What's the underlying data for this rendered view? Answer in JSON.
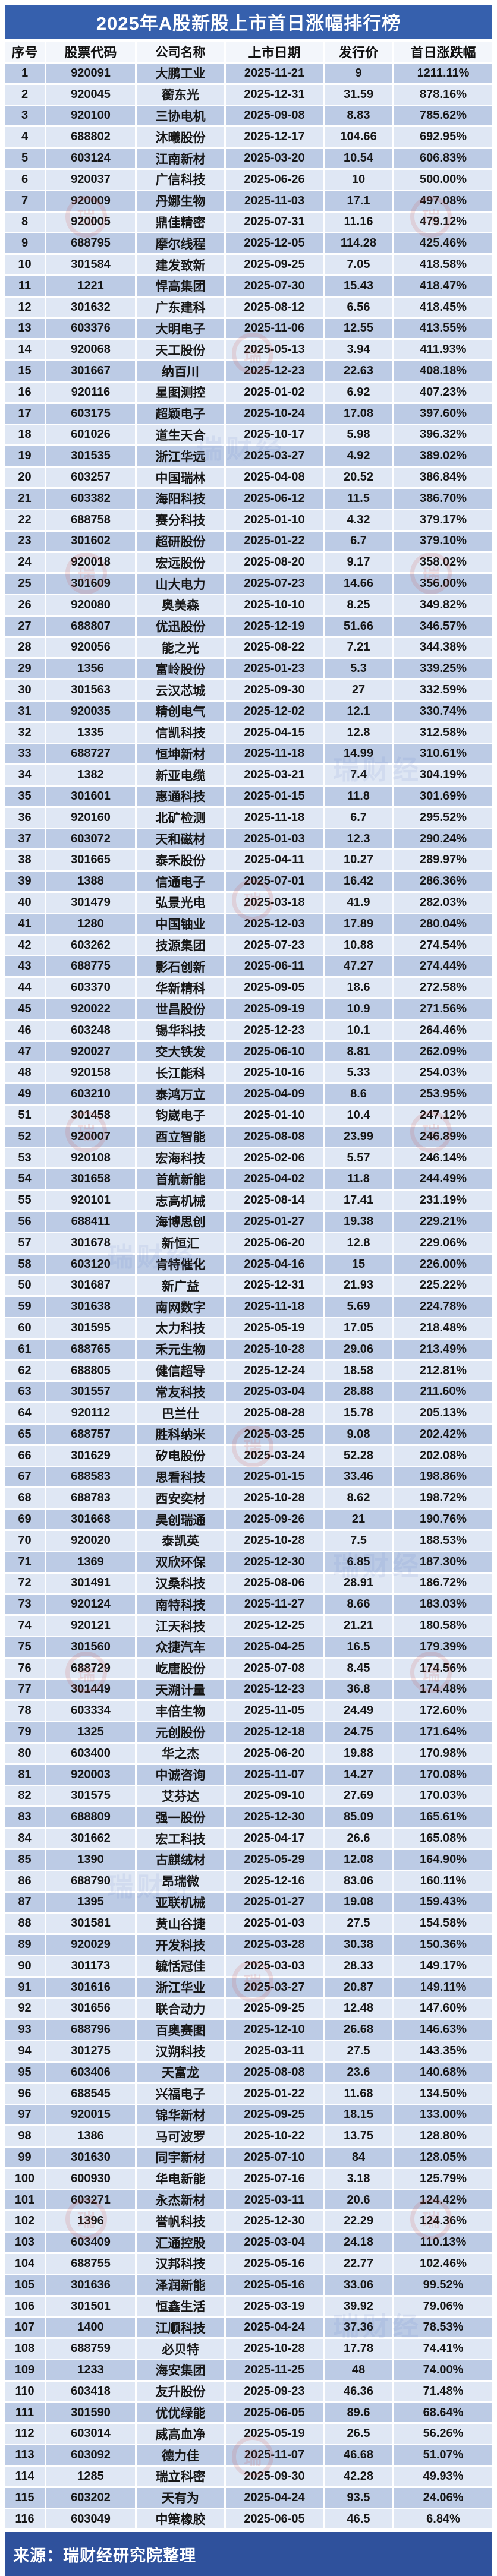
{
  "title": "2025年A股新股上市首日涨幅排行榜",
  "footer": {
    "source": "来源：瑞财经研究院整理"
  },
  "watermark": {
    "brand": "瑞财经"
  },
  "colors": {
    "title_bar": "#3660AD",
    "footer_bar": "#2F519C",
    "row_dark": "#BCCBE5",
    "row_light": "#DFE7F4",
    "header_bg": "#F3F6FB",
    "watermark_red": "#D24A43"
  },
  "table": {
    "columns": [
      "序号",
      "股票代码",
      "公司名称",
      "上市日期",
      "发行价",
      "首日涨跌幅"
    ],
    "rows": [
      [
        "1",
        "920091",
        "大鹏工业",
        "2025-11-21",
        "9",
        "1211.11%"
      ],
      [
        "2",
        "920045",
        "蘅东光",
        "2025-12-31",
        "31.59",
        "878.16%"
      ],
      [
        "3",
        "920100",
        "三协电机",
        "2025-09-08",
        "8.83",
        "785.62%"
      ],
      [
        "4",
        "688802",
        "沐曦股份",
        "2025-12-17",
        "104.66",
        "692.95%"
      ],
      [
        "5",
        "603124",
        "江南新材",
        "2025-03-20",
        "10.54",
        "606.83%"
      ],
      [
        "6",
        "920037",
        "广信科技",
        "2025-06-26",
        "10",
        "500.00%"
      ],
      [
        "7",
        "920009",
        "丹娜生物",
        "2025-11-03",
        "17.1",
        "497.08%"
      ],
      [
        "8",
        "920005",
        "鼎佳精密",
        "2025-07-31",
        "11.16",
        "479.12%"
      ],
      [
        "9",
        "688795",
        "摩尔线程",
        "2025-12-05",
        "114.28",
        "425.46%"
      ],
      [
        "10",
        "301584",
        "建发致新",
        "2025-09-25",
        "7.05",
        "418.58%"
      ],
      [
        "11",
        "1221",
        "悍高集团",
        "2025-07-30",
        "15.43",
        "418.47%"
      ],
      [
        "12",
        "301632",
        "广东建科",
        "2025-08-12",
        "6.56",
        "418.45%"
      ],
      [
        "13",
        "603376",
        "大明电子",
        "2025-11-06",
        "12.55",
        "413.55%"
      ],
      [
        "14",
        "920068",
        "天工股份",
        "2025-05-13",
        "3.94",
        "411.93%"
      ],
      [
        "15",
        "301667",
        "纳百川",
        "2025-12-23",
        "22.63",
        "408.18%"
      ],
      [
        "16",
        "920116",
        "星图测控",
        "2025-01-02",
        "6.92",
        "407.23%"
      ],
      [
        "17",
        "603175",
        "超颖电子",
        "2025-10-24",
        "17.08",
        "397.60%"
      ],
      [
        "18",
        "601026",
        "道生天合",
        "2025-10-17",
        "5.98",
        "396.32%"
      ],
      [
        "19",
        "301535",
        "浙江华远",
        "2025-03-27",
        "4.92",
        "389.02%"
      ],
      [
        "20",
        "603257",
        "中国瑞林",
        "2025-04-08",
        "20.52",
        "386.84%"
      ],
      [
        "21",
        "603382",
        "海阳科技",
        "2025-06-12",
        "11.5",
        "386.70%"
      ],
      [
        "22",
        "688758",
        "赛分科技",
        "2025-01-10",
        "4.32",
        "379.17%"
      ],
      [
        "23",
        "301602",
        "超研股份",
        "2025-01-22",
        "6.7",
        "379.10%"
      ],
      [
        "24",
        "920018",
        "宏远股份",
        "2025-08-20",
        "9.17",
        "358.02%"
      ],
      [
        "25",
        "301609",
        "山大电力",
        "2025-07-23",
        "14.66",
        "356.00%"
      ],
      [
        "26",
        "920080",
        "奥美森",
        "2025-10-10",
        "8.25",
        "349.82%"
      ],
      [
        "27",
        "688807",
        "优迅股份",
        "2025-12-19",
        "51.66",
        "346.57%"
      ],
      [
        "28",
        "920056",
        "能之光",
        "2025-08-22",
        "7.21",
        "344.38%"
      ],
      [
        "29",
        "1356",
        "富岭股份",
        "2025-01-23",
        "5.3",
        "339.25%"
      ],
      [
        "30",
        "301563",
        "云汉芯城",
        "2025-09-30",
        "27",
        "332.59%"
      ],
      [
        "31",
        "920035",
        "精创电气",
        "2025-12-02",
        "12.1",
        "330.74%"
      ],
      [
        "32",
        "1335",
        "信凯科技",
        "2025-04-15",
        "12.8",
        "312.58%"
      ],
      [
        "33",
        "688727",
        "恒坤新材",
        "2025-11-18",
        "14.99",
        "310.61%"
      ],
      [
        "34",
        "1382",
        "新亚电缆",
        "2025-03-21",
        "7.4",
        "304.19%"
      ],
      [
        "35",
        "301601",
        "惠通科技",
        "2025-01-15",
        "11.8",
        "301.69%"
      ],
      [
        "36",
        "920160",
        "北矿检测",
        "2025-11-18",
        "6.7",
        "295.52%"
      ],
      [
        "37",
        "603072",
        "天和磁材",
        "2025-01-03",
        "12.3",
        "290.24%"
      ],
      [
        "38",
        "301665",
        "泰禾股份",
        "2025-04-11",
        "10.27",
        "289.97%"
      ],
      [
        "39",
        "1388",
        "信通电子",
        "2025-07-01",
        "16.42",
        "286.36%"
      ],
      [
        "40",
        "301479",
        "弘景光电",
        "2025-03-18",
        "41.9",
        "282.03%"
      ],
      [
        "41",
        "1280",
        "中国铀业",
        "2025-12-03",
        "17.89",
        "280.04%"
      ],
      [
        "42",
        "603262",
        "技源集团",
        "2025-07-23",
        "10.88",
        "274.54%"
      ],
      [
        "43",
        "688775",
        "影石创新",
        "2025-06-11",
        "47.27",
        "274.44%"
      ],
      [
        "44",
        "603370",
        "华新精科",
        "2025-09-05",
        "18.6",
        "272.58%"
      ],
      [
        "45",
        "920022",
        "世昌股份",
        "2025-09-19",
        "10.9",
        "271.56%"
      ],
      [
        "46",
        "603248",
        "锡华科技",
        "2025-12-23",
        "10.1",
        "264.46%"
      ],
      [
        "47",
        "920027",
        "交大铁发",
        "2025-06-10",
        "8.81",
        "262.09%"
      ],
      [
        "48",
        "920158",
        "长江能科",
        "2025-10-16",
        "5.33",
        "254.03%"
      ],
      [
        "49",
        "603210",
        "泰鸿万立",
        "2025-04-09",
        "8.6",
        "253.95%"
      ],
      [
        "51",
        "301458",
        "钧崴电子",
        "2025-01-10",
        "10.4",
        "247.12%"
      ],
      [
        "52",
        "920007",
        "酉立智能",
        "2025-08-08",
        "23.99",
        "246.89%"
      ],
      [
        "53",
        "920108",
        "宏海科技",
        "2025-02-06",
        "5.57",
        "246.14%"
      ],
      [
        "54",
        "301658",
        "首航新能",
        "2025-04-02",
        "11.8",
        "244.49%"
      ],
      [
        "55",
        "920101",
        "志高机械",
        "2025-08-14",
        "17.41",
        "231.19%"
      ],
      [
        "56",
        "688411",
        "海博思创",
        "2025-01-27",
        "19.38",
        "229.21%"
      ],
      [
        "57",
        "301678",
        "新恒汇",
        "2025-06-20",
        "12.8",
        "229.06%"
      ],
      [
        "58",
        "603120",
        "肯特催化",
        "2025-04-16",
        "15",
        "226.00%"
      ],
      [
        "50",
        "301687",
        "新广益",
        "2025-12-31",
        "21.93",
        "225.22%"
      ],
      [
        "59",
        "301638",
        "南网数字",
        "2025-11-18",
        "5.69",
        "224.78%"
      ],
      [
        "60",
        "301595",
        "太力科技",
        "2025-05-19",
        "17.05",
        "218.48%"
      ],
      [
        "61",
        "688765",
        "禾元生物",
        "2025-10-28",
        "29.06",
        "213.49%"
      ],
      [
        "62",
        "688805",
        "健信超导",
        "2025-12-24",
        "18.58",
        "212.81%"
      ],
      [
        "63",
        "301557",
        "常友科技",
        "2025-03-04",
        "28.88",
        "211.60%"
      ],
      [
        "64",
        "920112",
        "巴兰仕",
        "2025-08-28",
        "15.78",
        "205.13%"
      ],
      [
        "65",
        "688757",
        "胜科纳米",
        "2025-03-25",
        "9.08",
        "202.42%"
      ],
      [
        "66",
        "301629",
        "矽电股份",
        "2025-03-24",
        "52.28",
        "202.08%"
      ],
      [
        "67",
        "688583",
        "思看科技",
        "2025-01-15",
        "33.46",
        "198.86%"
      ],
      [
        "68",
        "688783",
        "西安奕材",
        "2025-10-28",
        "8.62",
        "198.72%"
      ],
      [
        "69",
        "301668",
        "昊创瑞通",
        "2025-09-26",
        "21",
        "190.76%"
      ],
      [
        "70",
        "920020",
        "泰凯英",
        "2025-10-28",
        "7.5",
        "188.53%"
      ],
      [
        "71",
        "1369",
        "双欣环保",
        "2025-12-30",
        "6.85",
        "187.30%"
      ],
      [
        "72",
        "301491",
        "汉桑科技",
        "2025-08-06",
        "28.91",
        "186.72%"
      ],
      [
        "73",
        "920124",
        "南特科技",
        "2025-11-27",
        "8.66",
        "183.03%"
      ],
      [
        "74",
        "920121",
        "江天科技",
        "2025-12-25",
        "21.21",
        "180.58%"
      ],
      [
        "75",
        "301560",
        "众捷汽车",
        "2025-04-25",
        "16.5",
        "179.39%"
      ],
      [
        "76",
        "688729",
        "屹唐股份",
        "2025-07-08",
        "8.45",
        "174.56%"
      ],
      [
        "77",
        "301449",
        "天溯计量",
        "2025-12-23",
        "36.8",
        "174.48%"
      ],
      [
        "78",
        "603334",
        "丰倍生物",
        "2025-11-05",
        "24.49",
        "172.60%"
      ],
      [
        "79",
        "1325",
        "元创股份",
        "2025-12-18",
        "24.75",
        "171.64%"
      ],
      [
        "80",
        "603400",
        "华之杰",
        "2025-06-20",
        "19.88",
        "170.98%"
      ],
      [
        "81",
        "920003",
        "中诚咨询",
        "2025-11-07",
        "14.27",
        "170.08%"
      ],
      [
        "82",
        "301575",
        "艾芬达",
        "2025-09-10",
        "27.69",
        "170.03%"
      ],
      [
        "83",
        "688809",
        "强一股份",
        "2025-12-30",
        "85.09",
        "165.61%"
      ],
      [
        "84",
        "301662",
        "宏工科技",
        "2025-04-17",
        "26.6",
        "165.08%"
      ],
      [
        "85",
        "1390",
        "古麒绒材",
        "2025-05-29",
        "12.08",
        "164.90%"
      ],
      [
        "86",
        "688790",
        "昂瑞微",
        "2025-12-16",
        "83.06",
        "160.11%"
      ],
      [
        "87",
        "1395",
        "亚联机械",
        "2025-01-27",
        "19.08",
        "159.43%"
      ],
      [
        "88",
        "301581",
        "黄山谷捷",
        "2025-01-03",
        "27.5",
        "154.58%"
      ],
      [
        "89",
        "920029",
        "开发科技",
        "2025-03-28",
        "30.38",
        "150.36%"
      ],
      [
        "90",
        "301173",
        "毓恬冠佳",
        "2025-03-03",
        "28.33",
        "149.17%"
      ],
      [
        "91",
        "301616",
        "浙江华业",
        "2025-03-27",
        "20.87",
        "149.11%"
      ],
      [
        "92",
        "301656",
        "联合动力",
        "2025-09-25",
        "12.48",
        "147.60%"
      ],
      [
        "93",
        "688796",
        "百奥赛图",
        "2025-12-10",
        "26.68",
        "146.63%"
      ],
      [
        "94",
        "301275",
        "汉朔科技",
        "2025-03-11",
        "27.5",
        "143.35%"
      ],
      [
        "95",
        "603406",
        "天富龙",
        "2025-08-08",
        "23.6",
        "140.68%"
      ],
      [
        "96",
        "688545",
        "兴福电子",
        "2025-01-22",
        "11.68",
        "134.50%"
      ],
      [
        "97",
        "920015",
        "锦华新材",
        "2025-09-25",
        "18.15",
        "133.00%"
      ],
      [
        "98",
        "1386",
        "马可波罗",
        "2025-10-22",
        "13.75",
        "128.80%"
      ],
      [
        "99",
        "301630",
        "同宇新材",
        "2025-07-10",
        "84",
        "128.05%"
      ],
      [
        "100",
        "600930",
        "华电新能",
        "2025-07-16",
        "3.18",
        "125.79%"
      ],
      [
        "101",
        "603271",
        "永杰新材",
        "2025-03-11",
        "20.6",
        "124.42%"
      ],
      [
        "102",
        "1396",
        "誉帆科技",
        "2025-12-30",
        "22.29",
        "124.36%"
      ],
      [
        "103",
        "603409",
        "汇通控股",
        "2025-03-04",
        "24.18",
        "110.13%"
      ],
      [
        "104",
        "688755",
        "汉邦科技",
        "2025-05-16",
        "22.77",
        "102.46%"
      ],
      [
        "105",
        "301636",
        "泽润新能",
        "2025-05-16",
        "33.06",
        "99.52%"
      ],
      [
        "106",
        "301501",
        "恒鑫生活",
        "2025-03-19",
        "39.92",
        "79.06%"
      ],
      [
        "107",
        "1400",
        "江顺科技",
        "2025-04-24",
        "37.36",
        "78.53%"
      ],
      [
        "108",
        "688759",
        "必贝特",
        "2025-10-28",
        "17.78",
        "74.41%"
      ],
      [
        "109",
        "1233",
        "海安集团",
        "2025-11-25",
        "48",
        "74.00%"
      ],
      [
        "110",
        "603418",
        "友升股份",
        "2025-09-23",
        "46.36",
        "71.48%"
      ],
      [
        "111",
        "301590",
        "优优绿能",
        "2025-06-05",
        "89.6",
        "68.64%"
      ],
      [
        "112",
        "603014",
        "威高血净",
        "2025-05-19",
        "26.5",
        "56.26%"
      ],
      [
        "113",
        "603092",
        "德力佳",
        "2025-11-07",
        "46.68",
        "51.07%"
      ],
      [
        "114",
        "1285",
        "瑞立科密",
        "2025-09-30",
        "42.28",
        "49.93%"
      ],
      [
        "115",
        "603202",
        "天有为",
        "2025-04-24",
        "93.5",
        "24.06%"
      ],
      [
        "116",
        "603049",
        "中策橡胶",
        "2025-06-05",
        "46.5",
        "6.84%"
      ]
    ]
  }
}
